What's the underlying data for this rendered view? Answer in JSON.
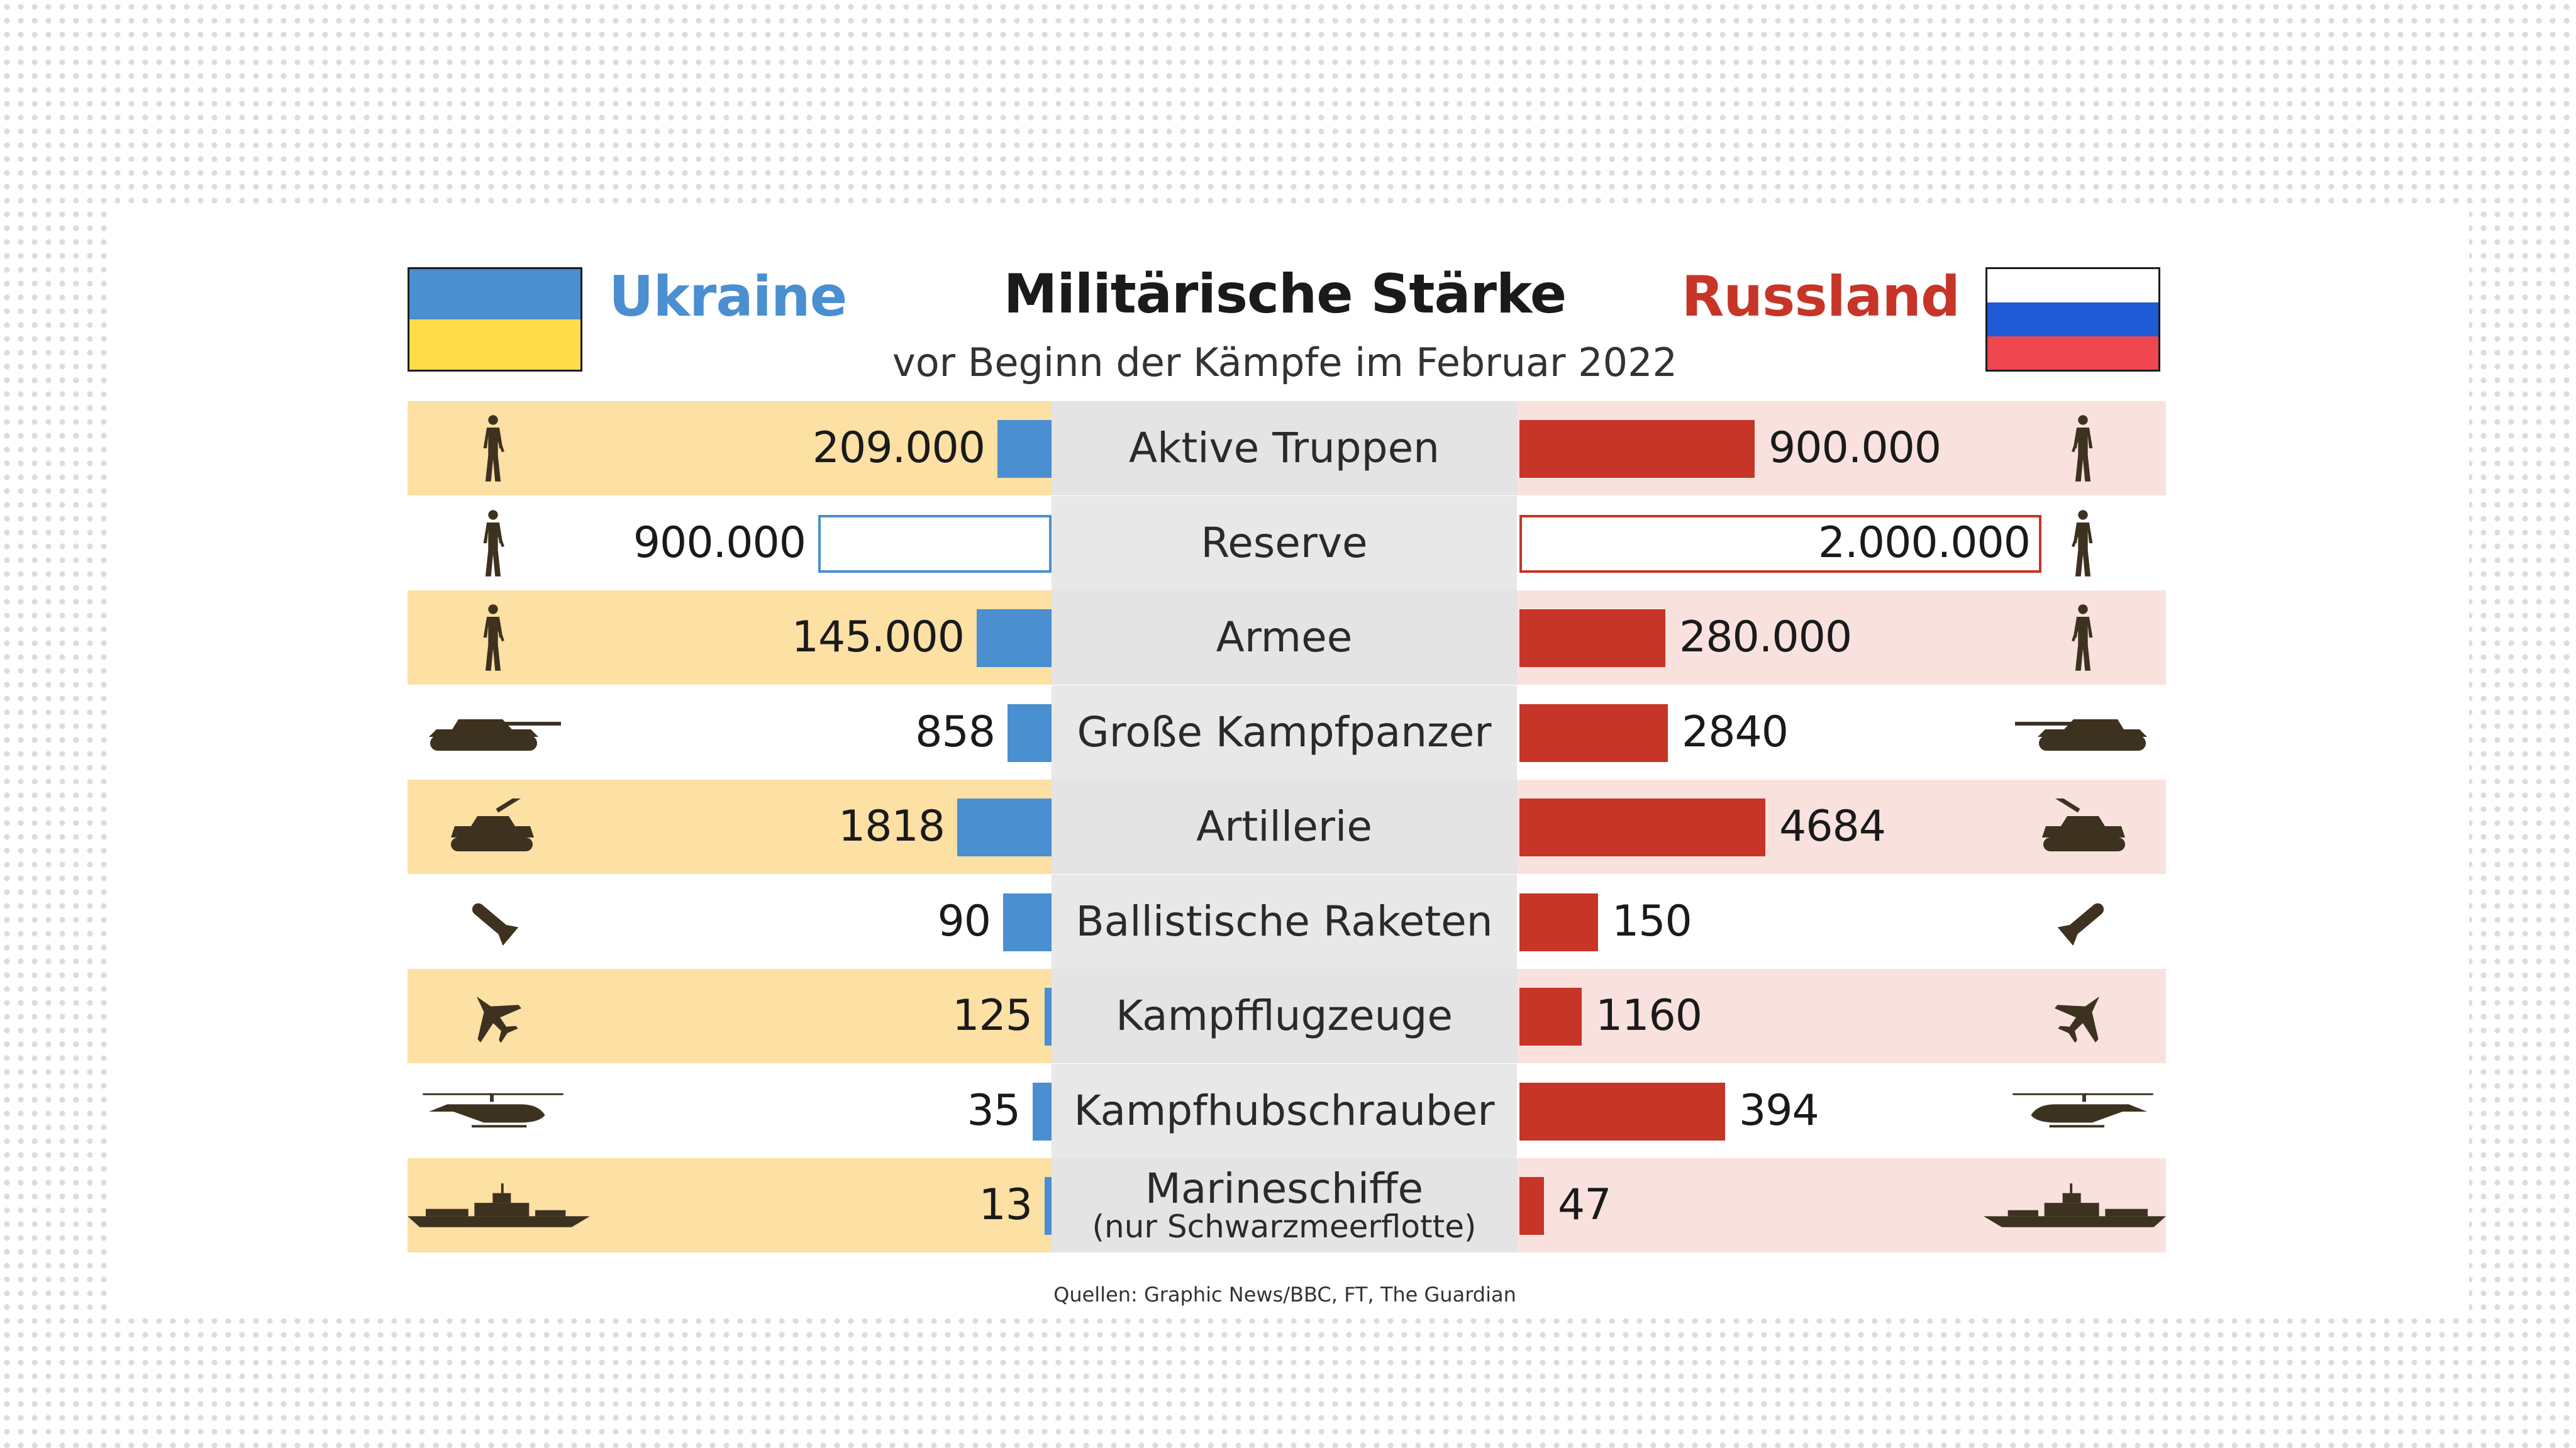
{
  "title": "Militärische Stärke",
  "subtitle": "vor Beginn der Kämpfe im Februar 2022",
  "source": "Quellen: Graphic News/BBC, FT, The Guardian",
  "colors": {
    "ukraine": "#4a8fd0",
    "russia": "#c63527",
    "flag_ua_blue": "#4a8fd0",
    "flag_ua_yellow": "#ffdc4a",
    "flag_ru_white": "#ffffff",
    "flag_ru_blue": "#1f5bd6",
    "flag_ru_red": "#ef4650",
    "icon": "#3d3120"
  },
  "chart_data": {
    "type": "bar",
    "title": "Militärische Stärke",
    "subtitle": "vor Beginn der Kämpfe im Februar 2022",
    "series": [
      {
        "name": "Ukraine",
        "labels": [
          "209.000",
          "900.000",
          "145.000",
          "858",
          "1818",
          "90",
          "125",
          "35",
          "13"
        ],
        "values": [
          209000,
          900000,
          145000,
          858,
          1818,
          90,
          125,
          35,
          13
        ]
      },
      {
        "name": "Russland",
        "labels": [
          "900.000",
          "2.000.000",
          "280.000",
          "2840",
          "4684",
          "150",
          "1160",
          "394",
          "47"
        ],
        "values": [
          900000,
          2000000,
          280000,
          2840,
          4684,
          150,
          1160,
          394,
          47
        ]
      }
    ],
    "categories": [
      {
        "label": "Aktive Truppen",
        "sub": "",
        "icon": "soldier-icon",
        "ua_bar": 0.084,
        "ru_bar": 0.362,
        "outline": false
      },
      {
        "label": "Reserve",
        "sub": "",
        "icon": "soldier-icon",
        "ua_bar": 0.362,
        "ru_bar": 0.804,
        "outline": true
      },
      {
        "label": "Armee",
        "sub": "",
        "icon": "soldier-icon",
        "ua_bar": 0.116,
        "ru_bar": 0.225,
        "outline": false
      },
      {
        "label": "Große Kampfpanzer",
        "sub": "",
        "icon": "tank-icon",
        "ua_bar": 0.068,
        "ru_bar": 0.229,
        "outline": false
      },
      {
        "label": "Artillerie",
        "sub": "",
        "icon": "artillery-icon",
        "ua_bar": 0.146,
        "ru_bar": 0.379,
        "outline": false
      },
      {
        "label": "Ballistische Raketen",
        "sub": "",
        "icon": "missile-icon",
        "ua_bar": 0.075,
        "ru_bar": 0.121,
        "outline": false
      },
      {
        "label": "Kampfflugzeuge",
        "sub": "",
        "icon": "fighter-jet-icon",
        "ua_bar": 0.011,
        "ru_bar": 0.096,
        "outline": false
      },
      {
        "label": "Kampfhubschrauber",
        "sub": "",
        "icon": "helicopter-icon",
        "ua_bar": 0.029,
        "ru_bar": 0.317,
        "outline": false
      },
      {
        "label": "Marineschiffe",
        "sub": "(nur Schwarzmeerflotte)",
        "icon": "warship-icon",
        "ua_bar": 0.011,
        "ru_bar": 0.038,
        "outline": false
      }
    ]
  }
}
